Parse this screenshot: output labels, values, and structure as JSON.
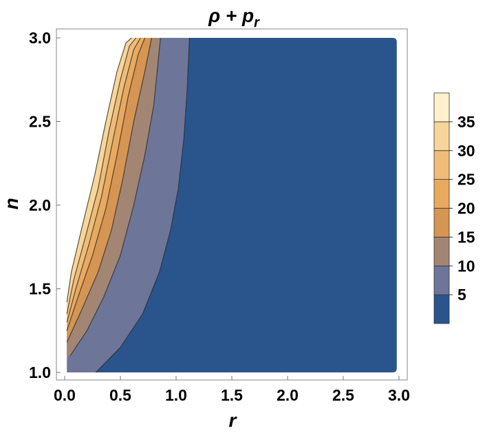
{
  "chart_data": {
    "type": "contour",
    "title": "ρ + p_r",
    "title_parts": {
      "main": "ρ + p",
      "sub": "r"
    },
    "xlabel": "r",
    "ylabel": "n",
    "xlim": [
      0.0,
      3.0
    ],
    "ylim": [
      1.0,
      3.0
    ],
    "x_ticks": [
      "0.0",
      "0.5",
      "1.0",
      "1.5",
      "2.0",
      "2.5",
      "3.0"
    ],
    "y_ticks": [
      "1.0",
      "1.5",
      "2.0",
      "2.5",
      "3.0"
    ],
    "levels": [
      5,
      10,
      15,
      20,
      25,
      30,
      35
    ],
    "legend_ticks": [
      "5",
      "10",
      "15",
      "20",
      "25",
      "30",
      "35"
    ],
    "legend_position": "right",
    "band_colors": [
      "#2a548c",
      "#6d7698",
      "#a28673",
      "#d69552",
      "#e9a95e",
      "#f0bd78",
      "#f8d69a",
      "#fff2cd"
    ],
    "contour_boundaries": [
      {
        "level": 5,
        "points": [
          [
            0.28,
            1.0
          ],
          [
            0.5,
            1.15
          ],
          [
            0.7,
            1.35
          ],
          [
            0.85,
            1.6
          ],
          [
            0.95,
            1.85
          ],
          [
            1.02,
            2.1
          ],
          [
            1.07,
            2.4
          ],
          [
            1.1,
            2.7
          ],
          [
            1.12,
            3.0
          ]
        ]
      },
      {
        "level": 10,
        "points": [
          [
            0.05,
            1.1
          ],
          [
            0.2,
            1.25
          ],
          [
            0.35,
            1.45
          ],
          [
            0.5,
            1.7
          ],
          [
            0.62,
            2.0
          ],
          [
            0.72,
            2.3
          ],
          [
            0.8,
            2.6
          ],
          [
            0.86,
            3.0
          ]
        ]
      },
      {
        "level": 15,
        "points": [
          [
            0.02,
            1.18
          ],
          [
            0.15,
            1.37
          ],
          [
            0.3,
            1.6
          ],
          [
            0.42,
            1.85
          ],
          [
            0.52,
            2.15
          ],
          [
            0.62,
            2.5
          ],
          [
            0.72,
            2.8
          ],
          [
            0.78,
            3.0
          ]
        ]
      },
      {
        "level": 20,
        "points": [
          [
            0.02,
            1.25
          ],
          [
            0.12,
            1.45
          ],
          [
            0.25,
            1.7
          ],
          [
            0.37,
            1.98
          ],
          [
            0.47,
            2.3
          ],
          [
            0.57,
            2.65
          ],
          [
            0.66,
            2.9
          ],
          [
            0.72,
            3.0
          ]
        ]
      },
      {
        "level": 25,
        "points": [
          [
            0.02,
            1.3
          ],
          [
            0.1,
            1.5
          ],
          [
            0.22,
            1.77
          ],
          [
            0.33,
            2.05
          ],
          [
            0.43,
            2.38
          ],
          [
            0.53,
            2.7
          ],
          [
            0.62,
            2.93
          ],
          [
            0.68,
            3.0
          ]
        ]
      },
      {
        "level": 30,
        "points": [
          [
            0.02,
            1.35
          ],
          [
            0.08,
            1.55
          ],
          [
            0.19,
            1.82
          ],
          [
            0.3,
            2.1
          ],
          [
            0.4,
            2.45
          ],
          [
            0.5,
            2.75
          ],
          [
            0.58,
            2.95
          ],
          [
            0.64,
            3.0
          ]
        ]
      },
      {
        "level": 35,
        "points": [
          [
            0.02,
            1.42
          ],
          [
            0.06,
            1.6
          ],
          [
            0.16,
            1.88
          ],
          [
            0.27,
            2.18
          ],
          [
            0.37,
            2.5
          ],
          [
            0.47,
            2.8
          ],
          [
            0.55,
            2.97
          ],
          [
            0.6,
            3.0
          ]
        ]
      }
    ],
    "domain_right_edge": 2.98
  }
}
